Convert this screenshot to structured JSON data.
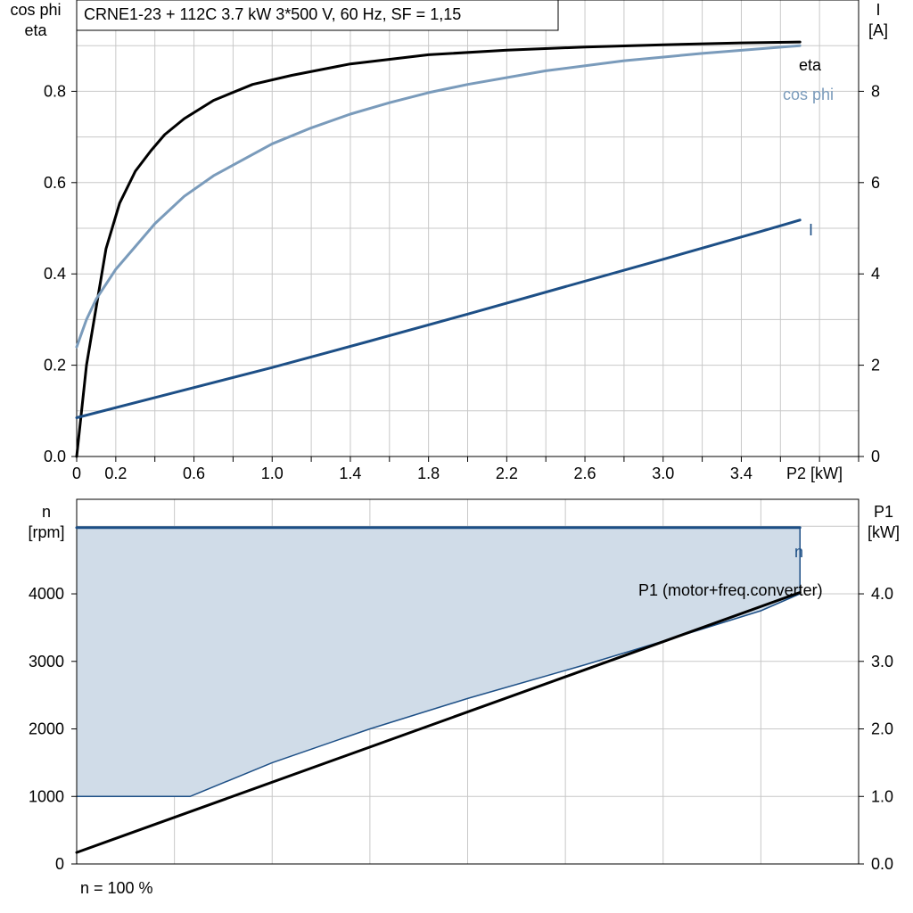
{
  "chart_data": [
    {
      "type": "line",
      "title": "CRNE1-23 + 112C   3.7 kW   3*500 V, 60 Hz, SF = 1,15",
      "xlabel": "P2 [kW]",
      "ylabel_left": [
        "cos phi",
        "eta"
      ],
      "ylabel_right": [
        "I",
        "[A]"
      ],
      "xlim": [
        0,
        4.0
      ],
      "ylim_left": [
        0,
        1.0
      ],
      "ylim_right": [
        0,
        10
      ],
      "x_ticks": [
        "0",
        "0.2",
        "0.6",
        "1.0",
        "1.4",
        "1.8",
        "2.2",
        "2.6",
        "3.0",
        "3.4"
      ],
      "y_ticks_left": [
        "0.0",
        "0.2",
        "0.4",
        "0.6",
        "0.8"
      ],
      "y_ticks_right": [
        "0",
        "2",
        "4",
        "6",
        "8"
      ],
      "grid": true,
      "series": [
        {
          "name": "eta",
          "axis": "left",
          "color": "#000000",
          "x": [
            0,
            0.05,
            0.15,
            0.22,
            0.3,
            0.38,
            0.45,
            0.55,
            0.7,
            0.9,
            1.1,
            1.4,
            1.8,
            2.2,
            2.6,
            3.0,
            3.4,
            3.7
          ],
          "y": [
            0.0,
            0.2,
            0.455,
            0.555,
            0.625,
            0.67,
            0.705,
            0.74,
            0.78,
            0.815,
            0.835,
            0.86,
            0.88,
            0.89,
            0.897,
            0.902,
            0.906,
            0.908
          ]
        },
        {
          "name": "cos phi",
          "axis": "left",
          "color": "#7a9bbb",
          "x": [
            0,
            0.05,
            0.1,
            0.2,
            0.3,
            0.4,
            0.55,
            0.7,
            0.85,
            1.0,
            1.2,
            1.4,
            1.6,
            1.8,
            2.0,
            2.4,
            2.8,
            3.2,
            3.7
          ],
          "y": [
            0.24,
            0.3,
            0.345,
            0.41,
            0.46,
            0.51,
            0.57,
            0.615,
            0.65,
            0.685,
            0.72,
            0.75,
            0.775,
            0.797,
            0.815,
            0.845,
            0.867,
            0.883,
            0.9
          ]
        },
        {
          "name": "I",
          "axis": "right",
          "color": "#1d4f86",
          "x": [
            0,
            0.5,
            1.0,
            1.5,
            2.0,
            2.5,
            3.0,
            3.5,
            3.7
          ],
          "y": [
            0.85,
            1.4,
            1.95,
            2.53,
            3.12,
            3.72,
            4.32,
            4.93,
            5.18
          ]
        }
      ]
    },
    {
      "type": "area",
      "ylabel_left": [
        "n",
        "[rpm]"
      ],
      "ylabel_right": [
        "P1",
        "[kW]"
      ],
      "footer": "n = 100 %",
      "ylim_left": [
        0,
        5400
      ],
      "ylim_right": [
        0,
        5.4
      ],
      "y_ticks_left": [
        "0",
        "1000",
        "2000",
        "3000",
        "4000"
      ],
      "y_ticks_right": [
        "0.0",
        "1.0",
        "2.0",
        "3.0",
        "4.0"
      ],
      "grid": true,
      "x_max": 3.7,
      "region": {
        "top_n": 4980,
        "lower_x": [
          0,
          0.58,
          1.0,
          1.5,
          2.0,
          2.6,
          3.0,
          3.5,
          3.7
        ],
        "lower_n": [
          1000,
          1000,
          1500,
          2000,
          2450,
          2950,
          3300,
          3750,
          4000
        ],
        "fill": "#d0dce8",
        "edge": "#1d4f86"
      },
      "series": [
        {
          "name": "n",
          "axis": "left",
          "color": "#1d4f86",
          "x": [
            0,
            3.7
          ],
          "y": [
            4980,
            4980
          ]
        },
        {
          "name": "P1 (motor+freq.converter)",
          "axis": "right",
          "color": "#000000",
          "x": [
            0,
            3.7
          ],
          "y": [
            0.17,
            4.02
          ]
        }
      ]
    }
  ]
}
